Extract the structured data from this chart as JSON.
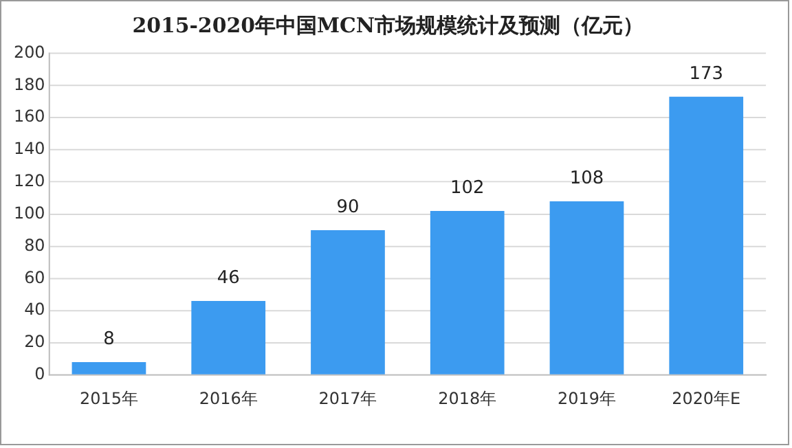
{
  "chart_data": {
    "type": "bar",
    "title": "2015-2020年中国MCN市场规模统计及预测（亿元）",
    "categories": [
      "2015年",
      "2016年",
      "2017年",
      "2018年",
      "2019年",
      "2020年E"
    ],
    "values": [
      8,
      46,
      90,
      102,
      108,
      173
    ],
    "color": "#3c9bf0",
    "ylim": [
      0,
      200
    ],
    "yticks": [
      0,
      20,
      40,
      60,
      80,
      100,
      120,
      140,
      160,
      180,
      200
    ],
    "grid": "y",
    "data_labels": true
  }
}
